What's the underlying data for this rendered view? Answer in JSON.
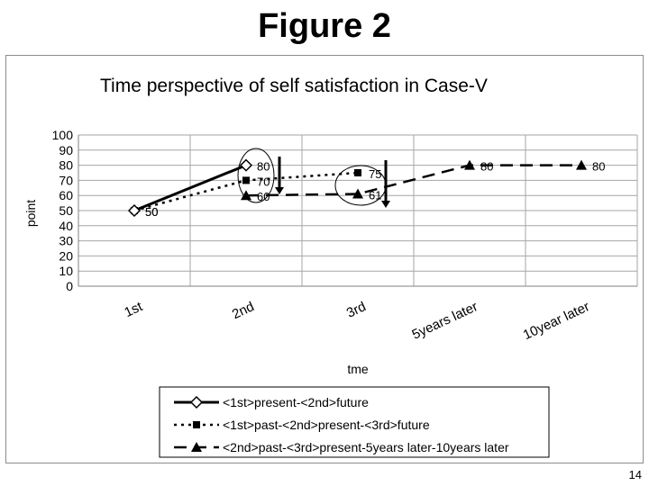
{
  "slide": {
    "title": "Figure 2",
    "page_number": "14"
  },
  "chart_data": {
    "type": "line",
    "title": "Time perspective of self satisfaction in Case-V",
    "xlabel": "tme",
    "ylabel": "point",
    "categories": [
      "1st",
      "2nd",
      "3rd",
      "5years later",
      "10year later"
    ],
    "ylim": [
      0,
      100
    ],
    "yticks": [
      "0",
      "10",
      "20",
      "30",
      "40",
      "50",
      "60",
      "70",
      "80",
      "90",
      "100"
    ],
    "grid": true,
    "legend_position": "bottom",
    "series": [
      {
        "name": "<1st>present-<2nd>future",
        "values": [
          50,
          80,
          null,
          null,
          null
        ],
        "labels": [
          "50",
          "80",
          "",
          "",
          ""
        ],
        "style": "solid",
        "marker": "diamond-open",
        "color": "#000000"
      },
      {
        "name": "<1st>past-<2nd>present-<3rd>future",
        "values": [
          50,
          70,
          75,
          null,
          null
        ],
        "labels": [
          "50",
          "70",
          "75",
          "",
          ""
        ],
        "style": "dotted",
        "marker": "square",
        "color": "#000000"
      },
      {
        "name": "<2nd>past-<3rd>present-5years later-10years later",
        "values": [
          null,
          60,
          61,
          80,
          80
        ],
        "labels": [
          "",
          "60",
          "61",
          "80",
          "80"
        ],
        "style": "dashed",
        "marker": "triangle",
        "color": "#000000"
      }
    ]
  }
}
